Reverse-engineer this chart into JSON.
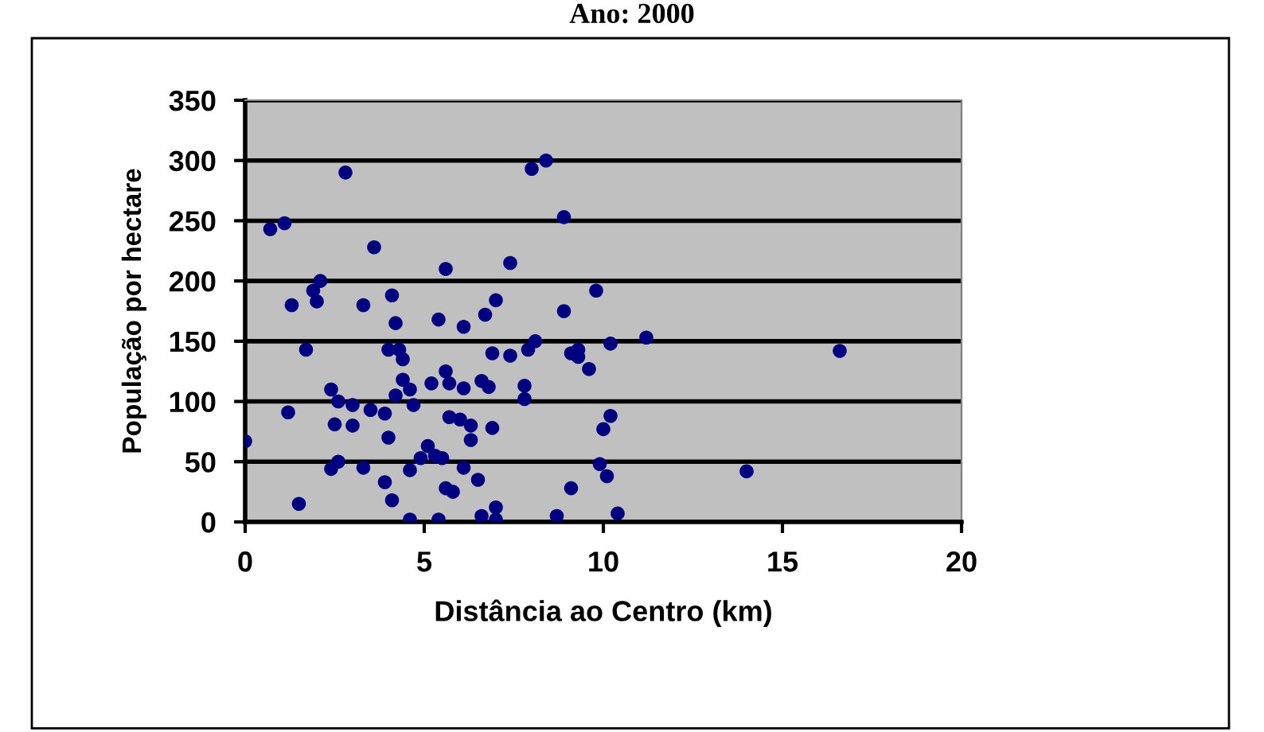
{
  "chart_data": {
    "type": "scatter",
    "title": "Ano: 2000",
    "xlabel": "Distância ao Centro (km)",
    "ylabel": "População por hectare",
    "x": [
      0,
      0.7,
      1.1,
      1.2,
      1.3,
      1.5,
      1.7,
      1.9,
      2.0,
      2.1,
      2.4,
      2.4,
      2.5,
      2.6,
      2.6,
      2.8,
      3.0,
      3.0,
      3.3,
      3.3,
      3.5,
      3.6,
      3.9,
      3.9,
      4.0,
      4.0,
      4.1,
      4.1,
      4.2,
      4.2,
      4.3,
      4.4,
      4.4,
      4.6,
      4.6,
      4.6,
      4.7,
      4.9,
      5.1,
      5.2,
      5.3,
      5.4,
      5.4,
      5.5,
      5.6,
      5.6,
      5.6,
      5.7,
      5.7,
      5.8,
      6.0,
      6.1,
      6.1,
      6.1,
      6.3,
      6.3,
      6.5,
      6.6,
      6.6,
      6.7,
      6.8,
      6.9,
      6.9,
      7.0,
      7.0,
      7.0,
      7.4,
      7.4,
      7.8,
      7.8,
      7.9,
      8.0,
      8.1,
      8.4,
      8.7,
      8.9,
      8.9,
      9.1,
      9.1,
      9.3,
      9.3,
      9.6,
      9.8,
      9.9,
      10.0,
      10.1,
      10.2,
      10.2,
      10.4,
      11.2,
      14.0,
      16.6
    ],
    "values": [
      67,
      243,
      248,
      91,
      180,
      15,
      143,
      192,
      183,
      200,
      110,
      44,
      81,
      50,
      100,
      290,
      80,
      97,
      45,
      180,
      93,
      228,
      33,
      90,
      70,
      143,
      18,
      188,
      105,
      165,
      143,
      135,
      118,
      110,
      2,
      43,
      97,
      53,
      63,
      115,
      55,
      168,
      2,
      53,
      28,
      210,
      125,
      115,
      87,
      25,
      85,
      45,
      111,
      162,
      80,
      68,
      35,
      5,
      117,
      172,
      112,
      140,
      78,
      12,
      184,
      2,
      215,
      138,
      102,
      113,
      143,
      293,
      150,
      300,
      5,
      175,
      253,
      28,
      140,
      143,
      137,
      127,
      192,
      48,
      77,
      38,
      88,
      148,
      7,
      153,
      42,
      142
    ],
    "color": "#000080",
    "marker": "circle",
    "xlim": [
      0,
      20
    ],
    "xticks": [
      0,
      5,
      10,
      15,
      20
    ],
    "ylim": [
      0,
      350
    ],
    "yticks": [
      0,
      50,
      100,
      150,
      200,
      250,
      300,
      350
    ],
    "grid": "y"
  }
}
